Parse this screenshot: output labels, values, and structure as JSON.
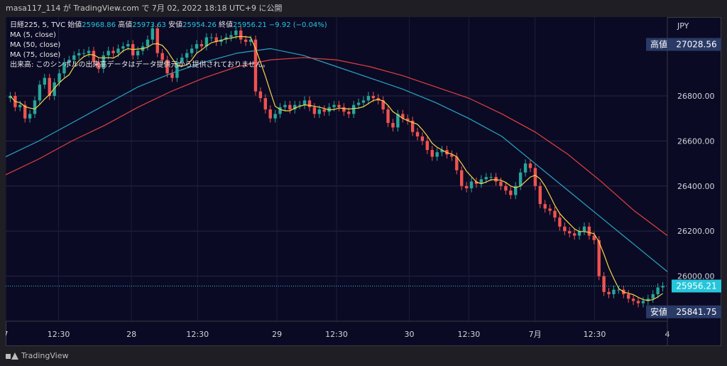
{
  "header": {
    "text": "masa117_114 が TradingView.com で 7月 02, 2022 18:18 UTC+9 に公開"
  },
  "legend": {
    "symbol": "日経225, 5, TVC",
    "open_label": "始値",
    "open": "25968.86",
    "high_label": "高値",
    "high": "25973.63",
    "low_label": "安値",
    "low": "25954.26",
    "close_label": "終値",
    "close": "25956.21",
    "change": "−9.92 (−0.04%)",
    "ma1": "MA (5, close)",
    "ma2": "MA (50, close)",
    "ma3": "MA (75, close)",
    "volume_note": "出来高: このシンボルの出来高データはデータ提供元から提供されておりません。"
  },
  "footer": {
    "brand": "TradingView"
  },
  "colors": {
    "up": "#26a69a",
    "down": "#ef5350",
    "ma5": "#f5d547",
    "ma50": "#26a6c6",
    "ma75": "#e04040",
    "bg": "#0b0a24"
  },
  "chart_data": {
    "type": "line",
    "currency": "JPY",
    "ylim": [
      25800,
      27150
    ],
    "y_ticks": [
      "26000.00",
      "26200.00",
      "26400.00",
      "26600.00",
      "26800.00"
    ],
    "y_tick_values": [
      26000,
      26200,
      26400,
      26600,
      26800
    ],
    "x_ticks": [
      "7",
      "12:30",
      "28",
      "12:30",
      "29",
      "12:30",
      "30",
      "12:30",
      "7月",
      "12:30",
      "4"
    ],
    "x_tick_positions": [
      0,
      8,
      19,
      29,
      41,
      50,
      61,
      70,
      80,
      89,
      100
    ],
    "high_label": "高値",
    "high_value": "27028.56",
    "high": 27028.56,
    "low_label": "安値",
    "low_value": "25841.75",
    "low": 25841.75,
    "last_value": "25956.21",
    "last": 25956.21,
    "candles_close": [
      26800,
      26750,
      26760,
      26700,
      26720,
      26780,
      26850,
      26880,
      26800,
      26860,
      26900,
      26950,
      26960,
      26980,
      26990,
      26990,
      27000,
      26950,
      26920,
      26980,
      27000,
      26990,
      27010,
      27020,
      27030,
      26980,
      27000,
      27020,
      27050,
      27100,
      26990,
      26960,
      26900,
      26880,
      26950,
      26970,
      26990,
      27010,
      27030,
      27020,
      27060,
      27060,
      27040,
      27050,
      27060,
      27070,
      27090,
      27050,
      27040,
      27050,
      26820,
      26790,
      26740,
      26700,
      26720,
      26750,
      26760,
      26740,
      26760,
      26760,
      26780,
      26750,
      26720,
      26740,
      26730,
      26750,
      26760,
      26750,
      26730,
      26720,
      26760,
      26770,
      26780,
      26800,
      26790,
      26780,
      26740,
      26680,
      26660,
      26720,
      26700,
      26690,
      26640,
      26620,
      26600,
      26560,
      26530,
      26550,
      26560,
      26540,
      26530,
      26470,
      26400,
      26390,
      26420,
      26410,
      26430,
      26440,
      26440,
      26420,
      26400,
      26380,
      26360,
      26400,
      26460,
      26500,
      26480,
      26400,
      26320,
      26300,
      26290,
      26260,
      26220,
      26200,
      26190,
      26180,
      26200,
      26220,
      26180,
      26160,
      26000,
      25930,
      25920,
      25940,
      25940,
      25920,
      25900,
      25890,
      25880,
      25890,
      25900,
      25920,
      25950,
      25956
    ],
    "series": [
      {
        "name": "MA (50, close)",
        "x": [
          0,
          5,
          10,
          15,
          20,
          25,
          30,
          35,
          40,
          45,
          50,
          55,
          60,
          65,
          70,
          75,
          80,
          85,
          90,
          95,
          100
        ],
        "values": [
          26530,
          26600,
          26680,
          26760,
          26840,
          26900,
          26950,
          26990,
          27010,
          26980,
          26930,
          26880,
          26830,
          26770,
          26700,
          26620,
          26500,
          26380,
          26260,
          26140,
          26020
        ]
      },
      {
        "name": "MA (75, close)",
        "x": [
          0,
          5,
          10,
          15,
          20,
          25,
          30,
          35,
          40,
          45,
          50,
          55,
          60,
          65,
          70,
          75,
          80,
          85,
          90,
          95,
          100
        ],
        "values": [
          26450,
          26520,
          26600,
          26670,
          26750,
          26820,
          26880,
          26930,
          26960,
          26970,
          26960,
          26930,
          26890,
          26840,
          26790,
          26720,
          26640,
          26540,
          26420,
          26290,
          26180
        ]
      }
    ]
  }
}
